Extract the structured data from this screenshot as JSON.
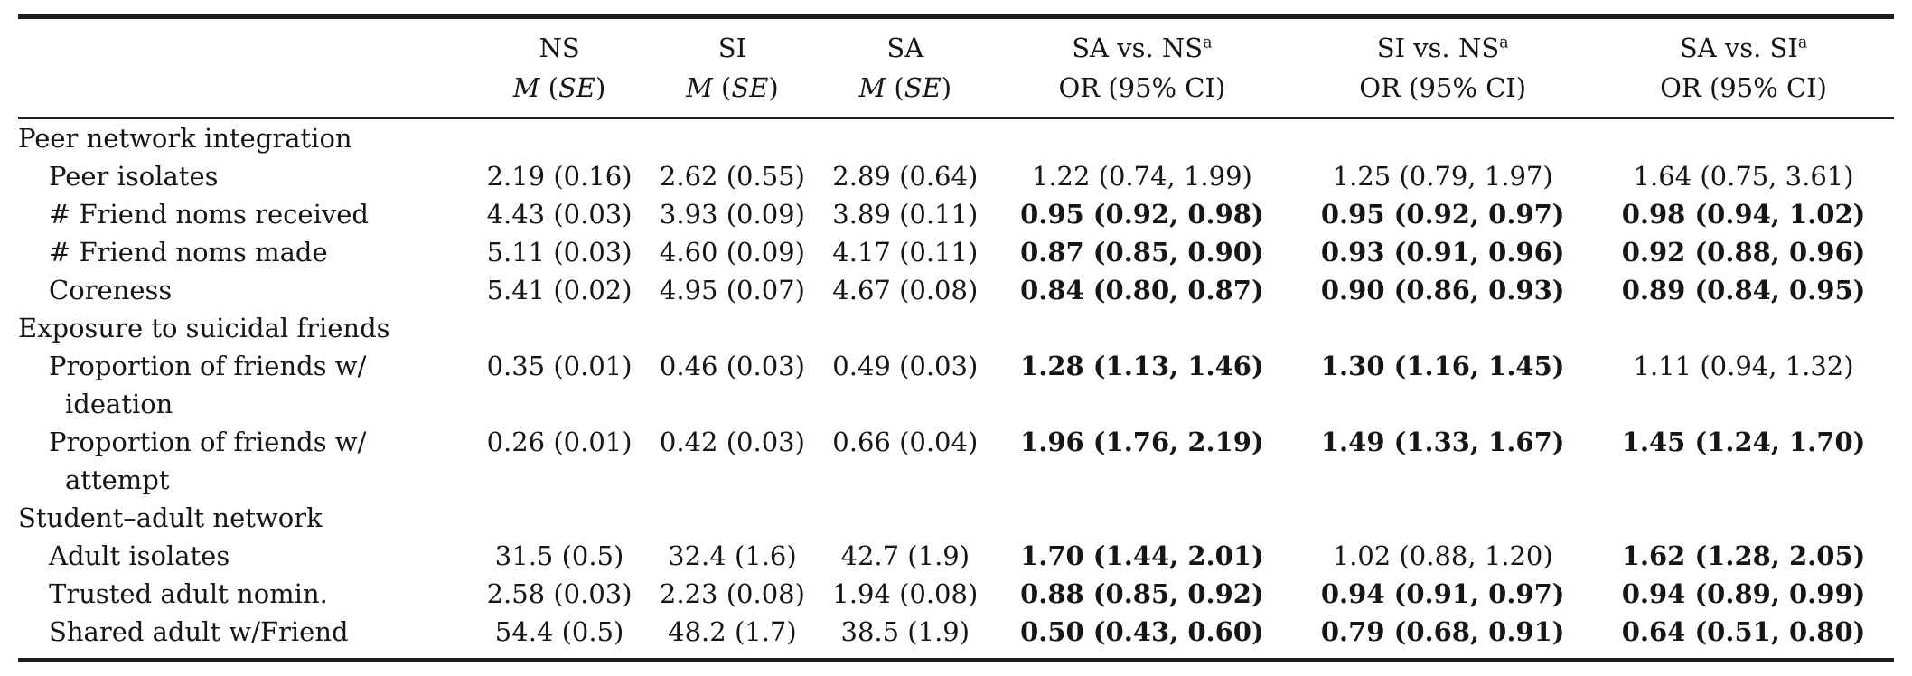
{
  "table": {
    "header": {
      "mean_columns": [
        {
          "abbr": "NS"
        },
        {
          "abbr": "SI"
        },
        {
          "abbr": "SA"
        }
      ],
      "stat_m": "M",
      "stat_open": " (",
      "stat_se": "SE",
      "stat_close": ")",
      "or_columns": [
        {
          "comparison": "SA vs. NS",
          "footnote": "a",
          "measure": "OR (95% CI)"
        },
        {
          "comparison": "SI vs. NS",
          "footnote": "a",
          "measure": "OR (95% CI)"
        },
        {
          "comparison": "SA vs. SI",
          "footnote": "a",
          "measure": "OR (95% CI)"
        }
      ]
    },
    "rows": [
      {
        "kind": "section",
        "label": "Peer network integration"
      },
      {
        "kind": "data",
        "label": "Peer isolates",
        "ns": "2.19 (0.16)",
        "si": "2.62 (0.55)",
        "sa": "2.89 (0.64)",
        "sa_ns": "1.22 (0.74, 1.99)",
        "sa_ns_bold": false,
        "si_ns": "1.25 (0.79, 1.97)",
        "si_ns_bold": false,
        "sa_si": "1.64 (0.75, 3.61)",
        "sa_si_bold": false
      },
      {
        "kind": "data",
        "label": "# Friend noms received",
        "ns": "4.43 (0.03)",
        "si": "3.93 (0.09)",
        "sa": "3.89 (0.11)",
        "sa_ns": "0.95 (0.92, 0.98)",
        "sa_ns_bold": true,
        "si_ns": "0.95 (0.92, 0.97)",
        "si_ns_bold": true,
        "sa_si": "0.98 (0.94, 1.02)",
        "sa_si_bold": true
      },
      {
        "kind": "data",
        "label": "# Friend noms made",
        "ns": "5.11 (0.03)",
        "si": "4.60 (0.09)",
        "sa": "4.17 (0.11)",
        "sa_ns": "0.87 (0.85, 0.90)",
        "sa_ns_bold": true,
        "si_ns": "0.93 (0.91, 0.96)",
        "si_ns_bold": true,
        "sa_si": "0.92 (0.88, 0.96)",
        "sa_si_bold": true
      },
      {
        "kind": "data",
        "label": "Coreness",
        "ns": "5.41 (0.02)",
        "si": "4.95 (0.07)",
        "sa": "4.67 (0.08)",
        "sa_ns": "0.84 (0.80, 0.87)",
        "sa_ns_bold": true,
        "si_ns": "0.90 (0.86, 0.93)",
        "si_ns_bold": true,
        "sa_si": "0.89 (0.84, 0.95)",
        "sa_si_bold": true
      },
      {
        "kind": "section",
        "label": "Exposure to suicidal friends"
      },
      {
        "kind": "data",
        "label": "Proportion of friends w/",
        "label2": "ideation",
        "ns": "0.35 (0.01)",
        "si": "0.46 (0.03)",
        "sa": "0.49 (0.03)",
        "sa_ns": "1.28 (1.13, 1.46)",
        "sa_ns_bold": true,
        "si_ns": "1.30 (1.16, 1.45)",
        "si_ns_bold": true,
        "sa_si": "1.11 (0.94, 1.32)",
        "sa_si_bold": false
      },
      {
        "kind": "data",
        "label": "Proportion of friends w/",
        "label2": "attempt",
        "ns": "0.26 (0.01)",
        "si": "0.42 (0.03)",
        "sa": "0.66 (0.04)",
        "sa_ns": "1.96 (1.76, 2.19)",
        "sa_ns_bold": true,
        "si_ns": "1.49 (1.33, 1.67)",
        "si_ns_bold": true,
        "sa_si": "1.45 (1.24, 1.70)",
        "sa_si_bold": true
      },
      {
        "kind": "section",
        "label": "Student–adult network"
      },
      {
        "kind": "data",
        "label": "Adult isolates",
        "ns": "31.5 (0.5)",
        "si": "32.4 (1.6)",
        "sa": "42.7 (1.9)",
        "sa_ns": "1.70 (1.44, 2.01)",
        "sa_ns_bold": true,
        "si_ns": "1.02 (0.88, 1.20)",
        "si_ns_bold": false,
        "sa_si": "1.62 (1.28, 2.05)",
        "sa_si_bold": true
      },
      {
        "kind": "data",
        "label": "Trusted adult nomin.",
        "ns": "2.58 (0.03)",
        "si": "2.23 (0.08)",
        "sa": "1.94 (0.08)",
        "sa_ns": "0.88 (0.85, 0.92)",
        "sa_ns_bold": true,
        "si_ns": "0.94 (0.91, 0.97)",
        "si_ns_bold": true,
        "sa_si": "0.94 (0.89, 0.99)",
        "sa_si_bold": true
      },
      {
        "kind": "data",
        "label": "Shared adult w/Friend",
        "ns": "54.4 (0.5)",
        "si": "48.2 (1.7)",
        "sa": "38.5 (1.9)",
        "sa_ns": "0.50 (0.43, 0.60)",
        "sa_ns_bold": true,
        "si_ns": "0.79 (0.68, 0.91)",
        "si_ns_bold": true,
        "sa_si": "0.64 (0.51, 0.80)",
        "sa_si_bold": true
      }
    ]
  }
}
